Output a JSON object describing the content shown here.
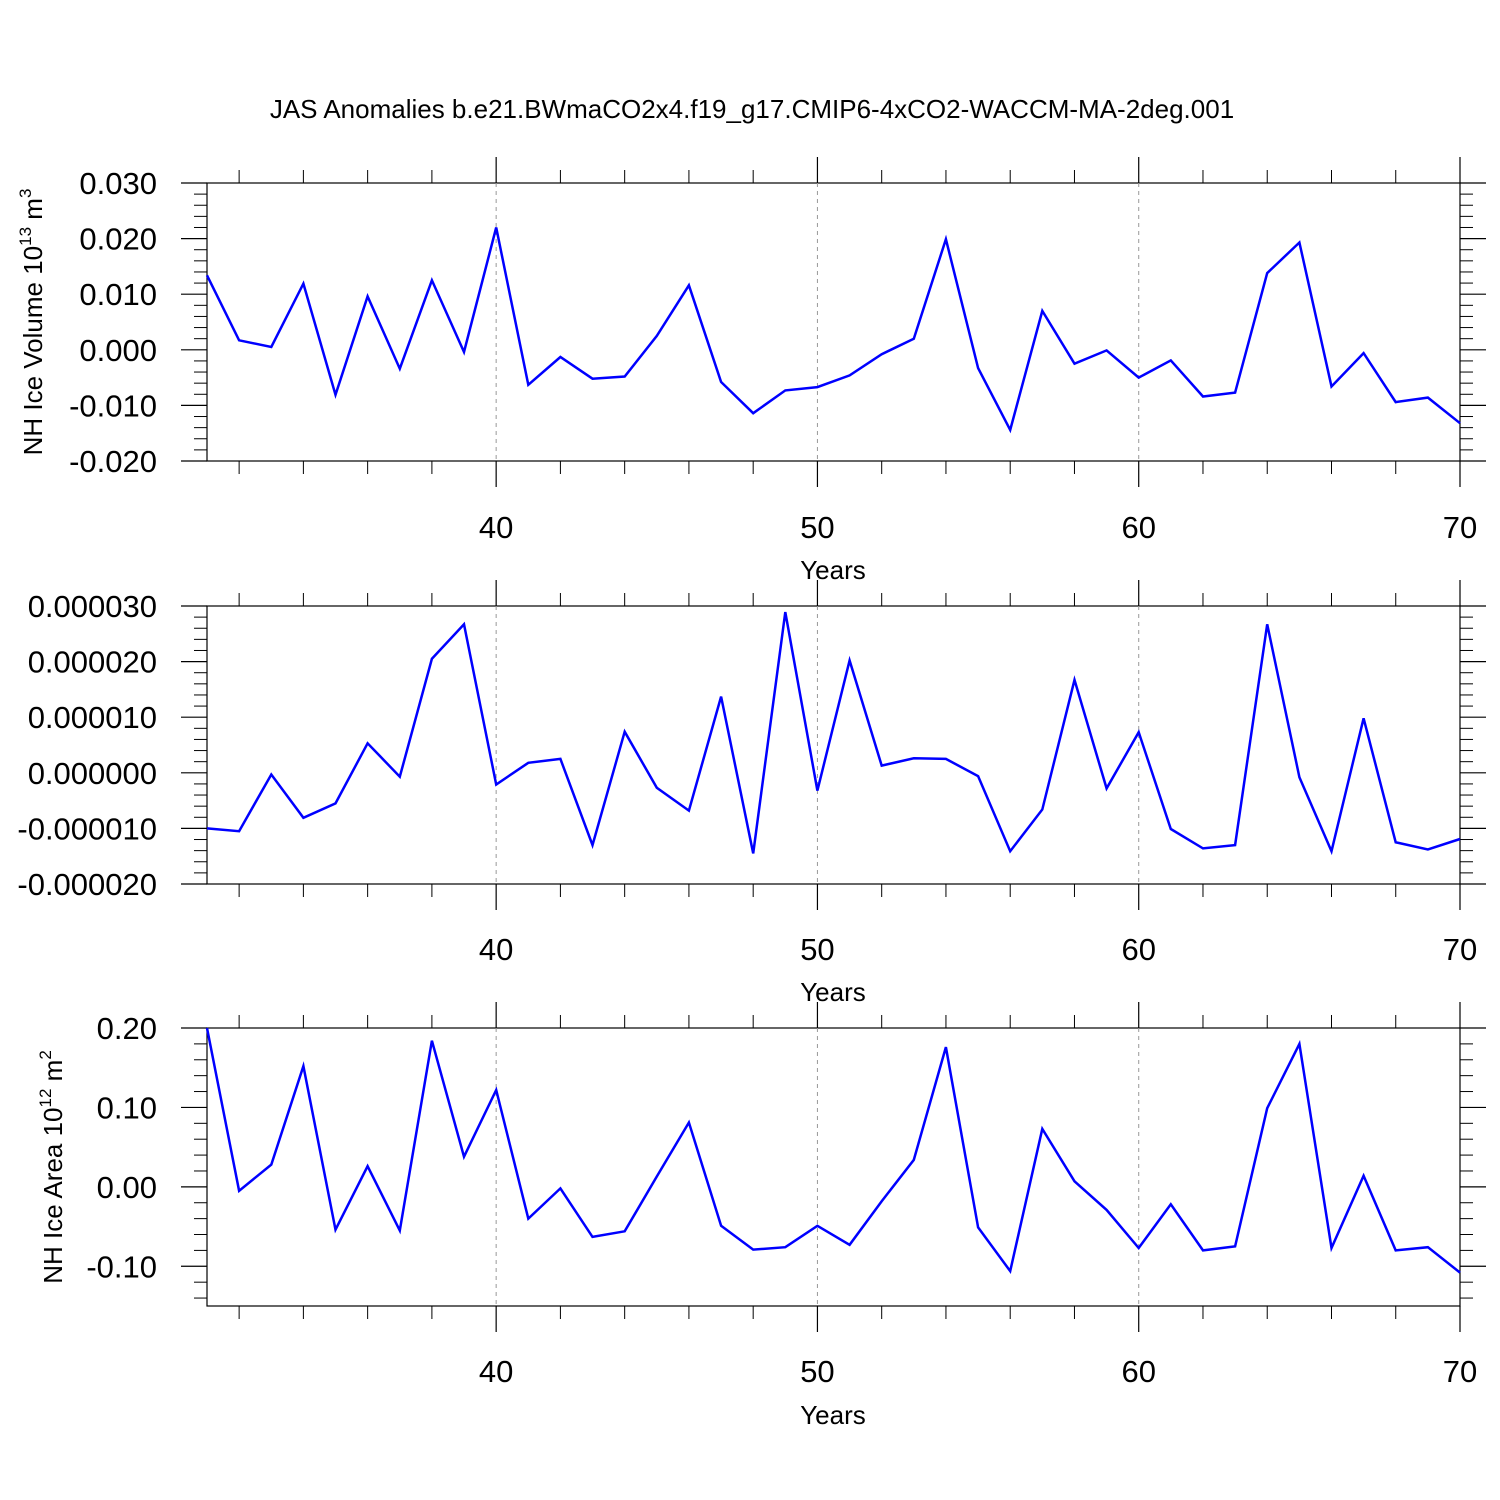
{
  "title": "JAS Anomalies b.e21.BWmaCO2x4.f19_g17.CMIP6-4xCO2-WACCM-MA-2deg.001",
  "line_color": "#0000ff",
  "chart_data": [
    {
      "type": "line",
      "ylabel_main": "NH Ice Volume 10",
      "ylabel_sup": "13",
      "ylabel_unit": "m",
      "ylabel_unit_sup": "3",
      "xlabel": "Years",
      "xlim": [
        31,
        70
      ],
      "ylim": [
        -0.02,
        0.03
      ],
      "yticks": [
        -0.02,
        -0.01,
        0.0,
        0.01,
        0.02,
        0.03
      ],
      "ytick_labels": [
        "-0.020",
        "-0.010",
        "0.000",
        "0.010",
        "0.020",
        "0.030"
      ],
      "xticks": [
        40,
        50,
        60,
        70
      ],
      "xtick_labels": [
        "40",
        "50",
        "60",
        "70"
      ],
      "x": [
        31,
        32,
        33,
        34,
        35,
        36,
        37,
        38,
        39,
        40,
        41,
        42,
        43,
        44,
        45,
        46,
        47,
        48,
        49,
        50,
        51,
        52,
        53,
        54,
        55,
        56,
        57,
        58,
        59,
        60,
        61,
        62,
        63,
        64,
        65,
        66,
        67,
        68,
        69,
        70
      ],
      "values": [
        0.0134,
        0.0017,
        0.0005,
        0.0119,
        -0.0081,
        0.0096,
        -0.0034,
        0.0125,
        -0.0004,
        0.022,
        -0.0063,
        -0.0013,
        -0.0052,
        -0.0048,
        0.0025,
        0.0116,
        -0.0058,
        -0.0114,
        -0.0073,
        -0.0067,
        -0.0046,
        -0.0008,
        0.002,
        0.0199,
        -0.0033,
        -0.0144,
        0.007,
        -0.0025,
        -0.0001,
        -0.005,
        -0.0019,
        -0.0084,
        -0.0077,
        0.0138,
        0.0193,
        -0.0066,
        -0.0006,
        -0.0094,
        -0.0086,
        -0.0132
      ]
    },
    {
      "type": "line",
      "ylabel_main": "",
      "xlabel": "Years",
      "xlim": [
        31,
        70
      ],
      "ylim": [
        -2e-05,
        3e-05
      ],
      "yticks": [
        -2e-05,
        -1e-05,
        0.0,
        1e-05,
        2e-05,
        3e-05
      ],
      "ytick_labels": [
        "-0.000020",
        "-0.000010",
        "0.000000",
        "0.000010",
        "0.000020",
        "0.000030"
      ],
      "xticks": [
        40,
        50,
        60,
        70
      ],
      "xtick_labels": [
        "40",
        "50",
        "60",
        "70"
      ],
      "x": [
        31,
        32,
        33,
        34,
        35,
        36,
        37,
        38,
        39,
        40,
        41,
        42,
        43,
        44,
        45,
        46,
        47,
        48,
        49,
        50,
        51,
        52,
        53,
        54,
        55,
        56,
        57,
        58,
        59,
        60,
        61,
        62,
        63,
        64,
        65,
        66,
        67,
        68,
        69,
        70
      ],
      "values": [
        -1e-05,
        -1.05e-05,
        -3e-07,
        -8.1e-06,
        -5.5e-06,
        5.3e-06,
        -7e-07,
        2.05e-05,
        2.67e-05,
        -2.1e-06,
        1.8e-06,
        2.5e-06,
        -1.3e-05,
        7.4e-06,
        -2.7e-06,
        -6.8e-06,
        1.37e-05,
        -1.45e-05,
        2.89e-05,
        -3.2e-06,
        2.02e-05,
        1.3e-06,
        2.6e-06,
        2.5e-06,
        -6e-07,
        -1.41e-05,
        -6.6e-06,
        1.67e-05,
        -2.8e-06,
        7.3e-06,
        -1.01e-05,
        -1.36e-05,
        -1.3e-05,
        2.67e-05,
        -8e-07,
        -1.41e-05,
        9.8e-06,
        -1.25e-05,
        -1.38e-05,
        -1.19e-05
      ]
    },
    {
      "type": "line",
      "ylabel_main": "NH Ice Area 10",
      "ylabel_sup": "12",
      "ylabel_unit": "m",
      "ylabel_unit_sup": "2",
      "xlabel": "Years",
      "xlim": [
        31,
        70
      ],
      "ylim": [
        -0.15,
        0.2
      ],
      "yticks": [
        -0.1,
        0.0,
        0.1,
        0.2
      ],
      "ytick_labels": [
        "-0.10",
        "0.00",
        "0.10",
        "0.20"
      ],
      "xticks": [
        40,
        50,
        60,
        70
      ],
      "xtick_labels": [
        "40",
        "50",
        "60",
        "70"
      ],
      "x": [
        31,
        32,
        33,
        34,
        35,
        36,
        37,
        38,
        39,
        40,
        41,
        42,
        43,
        44,
        45,
        46,
        47,
        48,
        49,
        50,
        51,
        52,
        53,
        54,
        55,
        56,
        57,
        58,
        59,
        60,
        61,
        62,
        63,
        64,
        65,
        66,
        67,
        68,
        69,
        70
      ],
      "values": [
        0.2,
        -0.005,
        0.028,
        0.152,
        -0.054,
        0.026,
        -0.055,
        0.184,
        0.038,
        0.122,
        -0.04,
        -0.002,
        -0.063,
        -0.056,
        0.013,
        0.081,
        -0.049,
        -0.079,
        -0.076,
        -0.049,
        -0.073,
        -0.018,
        0.034,
        0.176,
        -0.051,
        -0.106,
        0.073,
        0.007,
        -0.029,
        -0.077,
        -0.022,
        -0.08,
        -0.075,
        0.099,
        0.18,
        -0.077,
        0.014,
        -0.08,
        -0.076,
        -0.108
      ]
    }
  ]
}
